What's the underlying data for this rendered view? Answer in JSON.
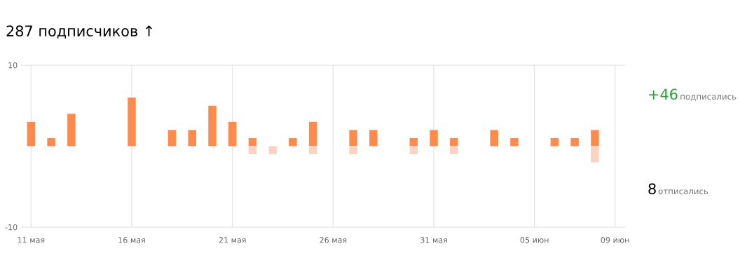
{
  "chart_data": {
    "type": "bar",
    "title": "287 подписчиков ↑",
    "categories": [
      "11 мая",
      null,
      null,
      null,
      null,
      "16 мая",
      null,
      null,
      null,
      null,
      "21 мая",
      null,
      null,
      null,
      null,
      "26 мая",
      null,
      null,
      null,
      null,
      "31 мая",
      null,
      null,
      null,
      null,
      "05 июн",
      null,
      null,
      null,
      "09 июн"
    ],
    "series": [
      {
        "color": "#ff8a4c",
        "values": [
          3,
          1,
          4,
          0,
          0,
          6,
          0,
          2,
          2,
          5,
          3,
          1,
          0,
          1,
          3,
          0,
          2,
          2,
          0,
          1,
          2,
          1,
          0,
          2,
          1,
          0,
          1,
          1,
          2,
          0
        ]
      },
      {
        "color": "#fcd3c2",
        "values": [
          null,
          null,
          null,
          null,
          null,
          null,
          null,
          null,
          null,
          null,
          null,
          -1,
          -1,
          null,
          -1,
          null,
          -1,
          null,
          null,
          -1,
          null,
          -1,
          null,
          null,
          null,
          null,
          null,
          null,
          -2,
          null
        ]
      }
    ],
    "ylim": [
      -10,
      10
    ],
    "yticks": [
      -10,
      10
    ],
    "grid": "x",
    "annotations": [
      "+46 подписались",
      "8 отписались"
    ]
  }
}
